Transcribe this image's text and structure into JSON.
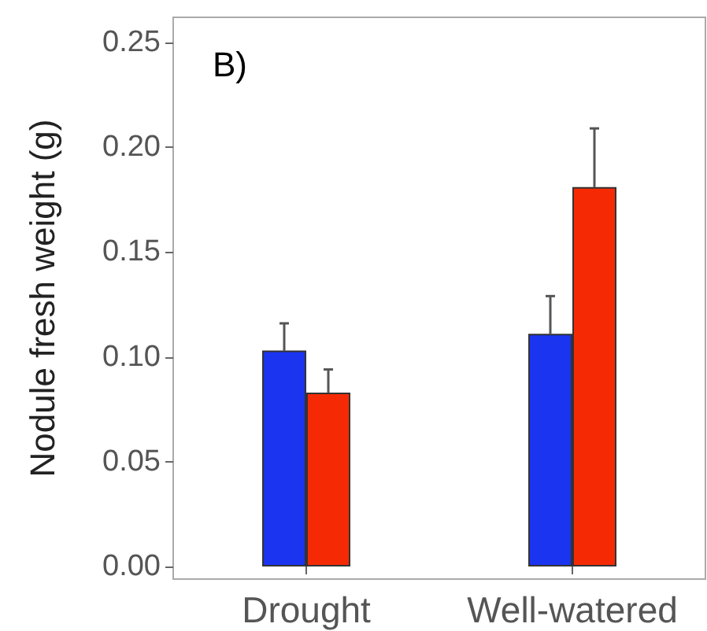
{
  "chart_data": {
    "type": "bar",
    "ylabel": "Nodule fresh weight (g)",
    "annotations": [
      "B)"
    ],
    "categories": [
      "Drought",
      "Well-watered"
    ],
    "series": [
      {
        "color": "#1a34f0",
        "values": [
          0.103,
          0.111
        ],
        "errors": [
          [
            0.103,
            0.116
          ],
          [
            0.111,
            0.129
          ]
        ]
      },
      {
        "color": "#f52a05",
        "values": [
          0.083,
          0.181
        ],
        "errors": [
          [
            0.083,
            0.094
          ],
          [
            0.181,
            0.209
          ]
        ]
      }
    ],
    "ylim": [
      -0.006,
      0.262
    ],
    "yticks": [
      {
        "value": 0,
        "label": "0.00"
      },
      {
        "value": 0.05,
        "label": "0.05"
      },
      {
        "value": 0.1,
        "label": "0.10"
      },
      {
        "value": 0.15,
        "label": "0.15"
      },
      {
        "value": 0.2,
        "label": "0.20"
      },
      {
        "value": 0.25,
        "label": "0.25"
      }
    ],
    "grid": false
  }
}
